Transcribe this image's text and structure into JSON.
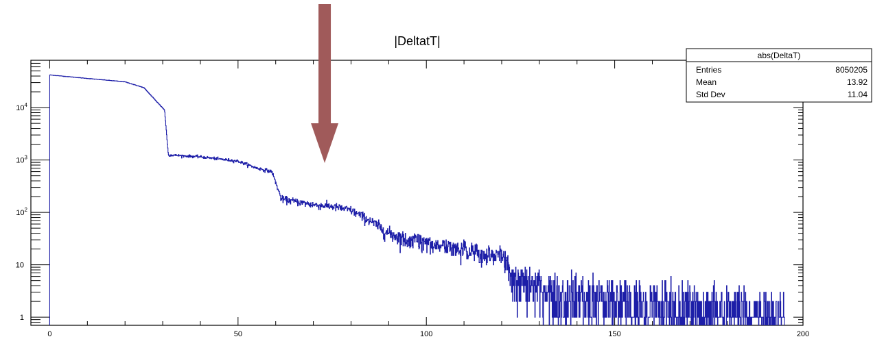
{
  "chart_data": {
    "type": "histogram",
    "title": "|DeltatT|",
    "xlim": [
      -5,
      200
    ],
    "xscale": "linear",
    "ylim": [
      0.7,
      80000
    ],
    "yscale": "log",
    "x_ticks": [
      0,
      50,
      100,
      150,
      200
    ],
    "y_ticks": [
      {
        "value": 1,
        "label": "1",
        "exp": ""
      },
      {
        "value": 10,
        "label": "10",
        "exp": ""
      },
      {
        "value": 100,
        "label": "10",
        "exp": "2"
      },
      {
        "value": 1000,
        "label": "10",
        "exp": "3"
      },
      {
        "value": 10000,
        "label": "10",
        "exp": "4"
      }
    ],
    "series": [
      {
        "line_color": "#1d1ea8",
        "bin_width": 0.1,
        "profile": [
          [
            0,
            42000
          ],
          [
            10,
            36000
          ],
          [
            20,
            31000
          ],
          [
            25,
            24000
          ],
          [
            28,
            14000
          ],
          [
            30.5,
            9000
          ],
          [
            31.5,
            1250
          ],
          [
            40,
            1150
          ],
          [
            50,
            950
          ],
          [
            55,
            700
          ],
          [
            59,
            600
          ],
          [
            61.5,
            180
          ],
          [
            70,
            140
          ],
          [
            75,
            130
          ],
          [
            80,
            110
          ],
          [
            85,
            70
          ],
          [
            90,
            40
          ],
          [
            95,
            30
          ],
          [
            100,
            27
          ],
          [
            110,
            20
          ],
          [
            120,
            14
          ],
          [
            124,
            5
          ],
          [
            130,
            3.5
          ],
          [
            150,
            2
          ],
          [
            175,
            1.4
          ],
          [
            195,
            1.2
          ]
        ]
      }
    ],
    "stats_box": {
      "name": "abs(DeltaT)",
      "rows": [
        {
          "label": "Entries",
          "value": "8050205"
        },
        {
          "label": "Mean",
          "value": "13.92"
        },
        {
          "label": "Std Dev",
          "value": "11.04"
        }
      ]
    },
    "annotation": {
      "type": "arrow",
      "direction": "down",
      "color": "#a05a5a",
      "x": 73
    }
  }
}
